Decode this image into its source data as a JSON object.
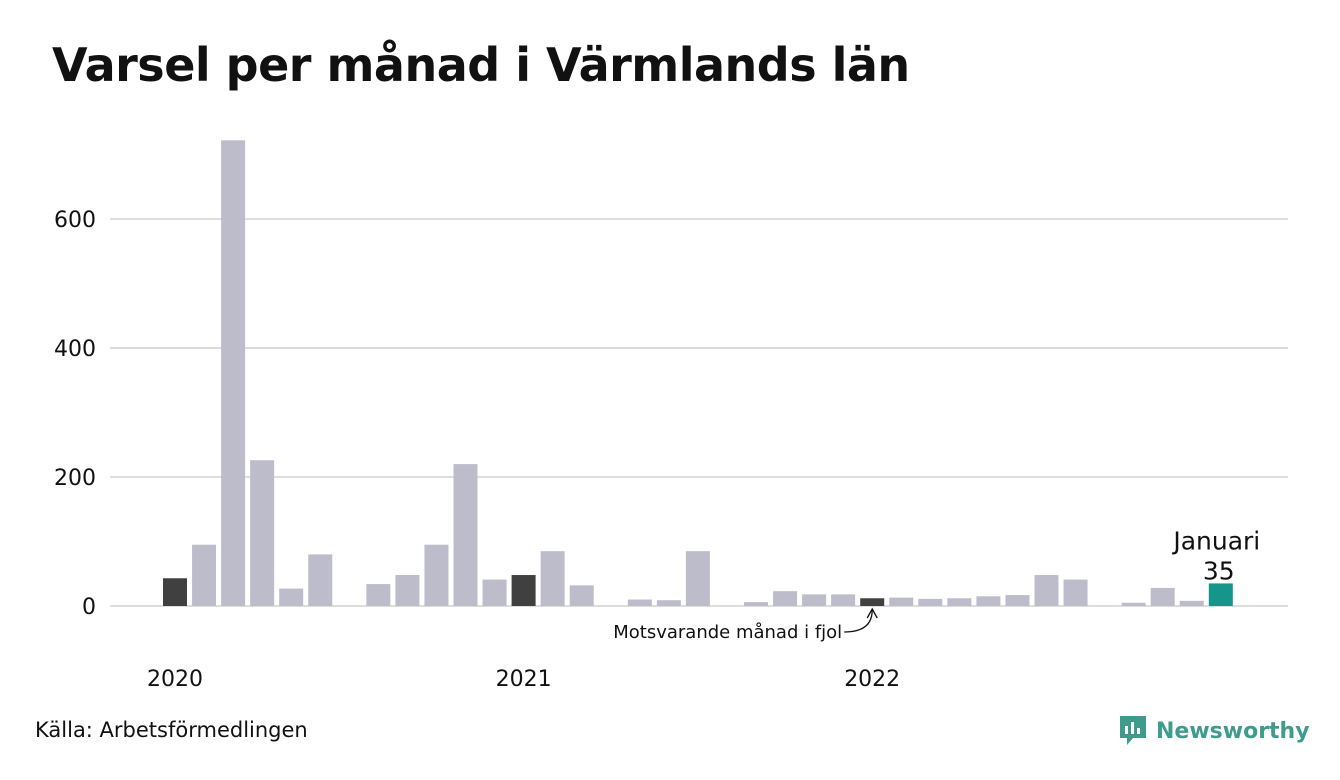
{
  "title": "Varsel per månad i Värmlands län",
  "source": "Källa: Arbetsförmedlingen",
  "brand": {
    "name": "Newsworthy",
    "icon": "newsworthy-logo-icon",
    "color": "#3f9c8c"
  },
  "colors": {
    "default": "#bdbccb",
    "highlight": "#404040",
    "current": "#16958a",
    "grid": "#dddddd"
  },
  "chart_data": {
    "type": "bar",
    "title": "Varsel per månad i Värmlands län",
    "xlabel": "",
    "ylabel": "",
    "ylim": [
      0,
      720
    ],
    "yticks": [
      0,
      200,
      400,
      600
    ],
    "grid": true,
    "x_tick_labels": [
      {
        "label": "2020",
        "at": "2020-01"
      },
      {
        "label": "2021",
        "at": "2021-01"
      },
      {
        "label": "2022",
        "at": "2022-01"
      }
    ],
    "x": [
      "2020-01",
      "2020-02",
      "2020-03",
      "2020-04",
      "2020-05",
      "2020-06",
      "2020-07",
      "2020-08",
      "2020-09",
      "2020-10",
      "2020-11",
      "2020-12",
      "2021-01",
      "2021-02",
      "2021-03",
      "2021-04",
      "2021-05",
      "2021-06",
      "2021-07",
      "2021-08",
      "2021-09",
      "2021-10",
      "2021-11",
      "2021-12",
      "2022-01",
      "2022-02",
      "2022-03",
      "2022-04",
      "2022-05",
      "2022-06",
      "2022-07",
      "2022-08",
      "2022-09",
      "2022-10",
      "2022-11",
      "2022-12",
      "2023-01"
    ],
    "values": [
      43,
      95,
      722,
      226,
      27,
      80,
      0,
      34,
      48,
      95,
      220,
      41,
      48,
      85,
      32,
      0,
      10,
      9,
      85,
      0,
      6,
      23,
      18,
      18,
      12,
      13,
      11,
      12,
      15,
      17,
      48,
      41,
      0,
      5,
      28,
      8,
      35
    ],
    "highlighted": [
      "2020-01",
      "2021-01",
      "2022-01"
    ],
    "current": "2023-01",
    "annotations": [
      {
        "text": "Motsvarande månad i fjol",
        "target": "2022-01"
      },
      {
        "text": "Januari",
        "target": "2023-01"
      },
      {
        "text": "35",
        "target": "2023-01"
      }
    ]
  }
}
